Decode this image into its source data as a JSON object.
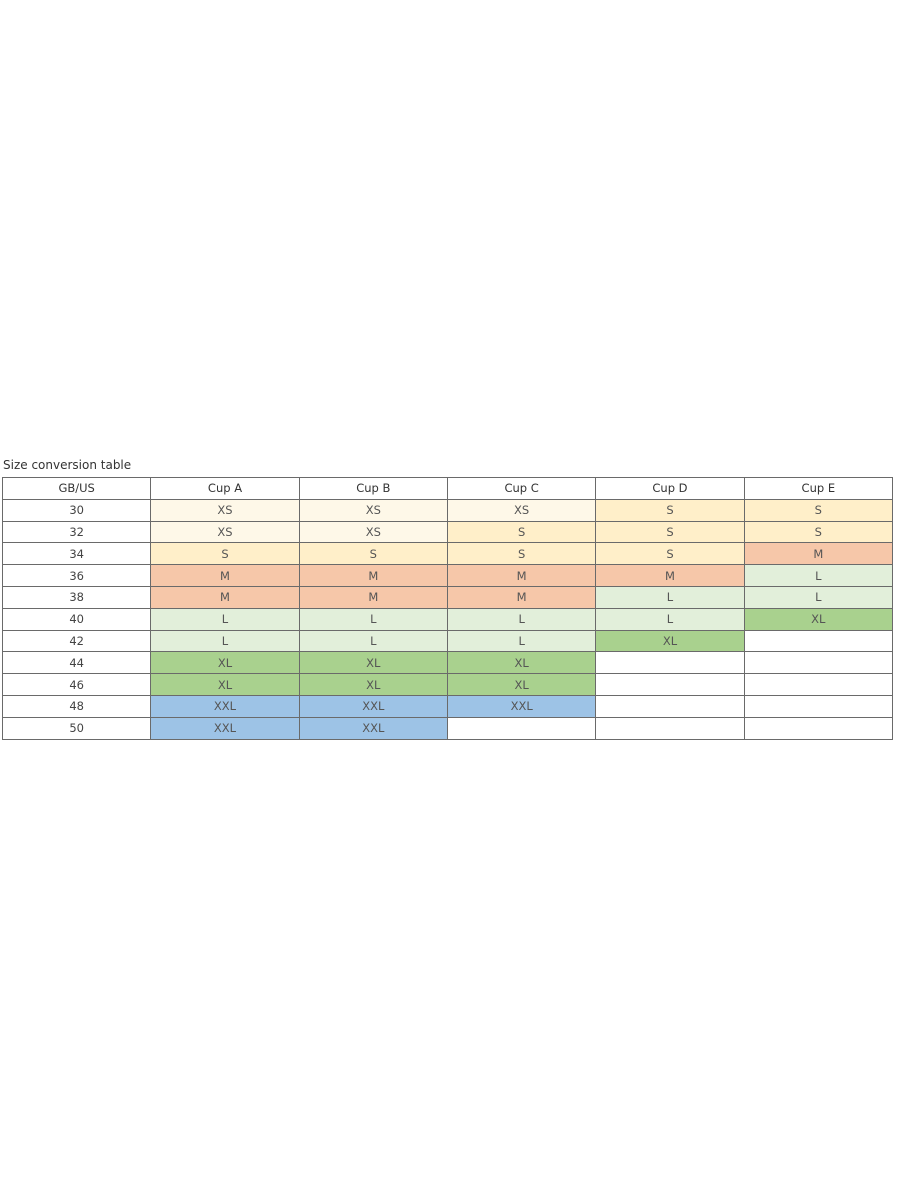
{
  "title": "Size conversion table",
  "headers": [
    "GB/US",
    "Cup A",
    "Cup B",
    "Cup C",
    "Cup D",
    "Cup E"
  ],
  "rows": [
    {
      "band": "30",
      "sizes": [
        "XS",
        "XS",
        "XS",
        "S",
        "S"
      ]
    },
    {
      "band": "32",
      "sizes": [
        "XS",
        "XS",
        "S",
        "S",
        "S"
      ]
    },
    {
      "band": "34",
      "sizes": [
        "S",
        "S",
        "S",
        "S",
        "M"
      ]
    },
    {
      "band": "36",
      "sizes": [
        "M",
        "M",
        "M",
        "M",
        "L"
      ]
    },
    {
      "band": "38",
      "sizes": [
        "M",
        "M",
        "M",
        "L",
        "L"
      ]
    },
    {
      "band": "40",
      "sizes": [
        "L",
        "L",
        "L",
        "L",
        "XL"
      ]
    },
    {
      "band": "42",
      "sizes": [
        "L",
        "L",
        "L",
        "XL",
        ""
      ]
    },
    {
      "band": "44",
      "sizes": [
        "XL",
        "XL",
        "XL",
        "",
        ""
      ]
    },
    {
      "band": "46",
      "sizes": [
        "XL",
        "XL",
        "XL",
        "",
        ""
      ]
    },
    {
      "band": "48",
      "sizes": [
        "XXL",
        "XXL",
        "XXL",
        "",
        ""
      ]
    },
    {
      "band": "50",
      "sizes": [
        "XXL",
        "XXL",
        "",
        "",
        ""
      ]
    }
  ],
  "size_colors": {
    "XS": "#fef8e8",
    "S": "#ffefc9",
    "M": "#f6c7a9",
    "L": "#e2efda",
    "XL": "#a9d18e",
    "XXL": "#9dc3e6",
    "": "#ffffff"
  }
}
